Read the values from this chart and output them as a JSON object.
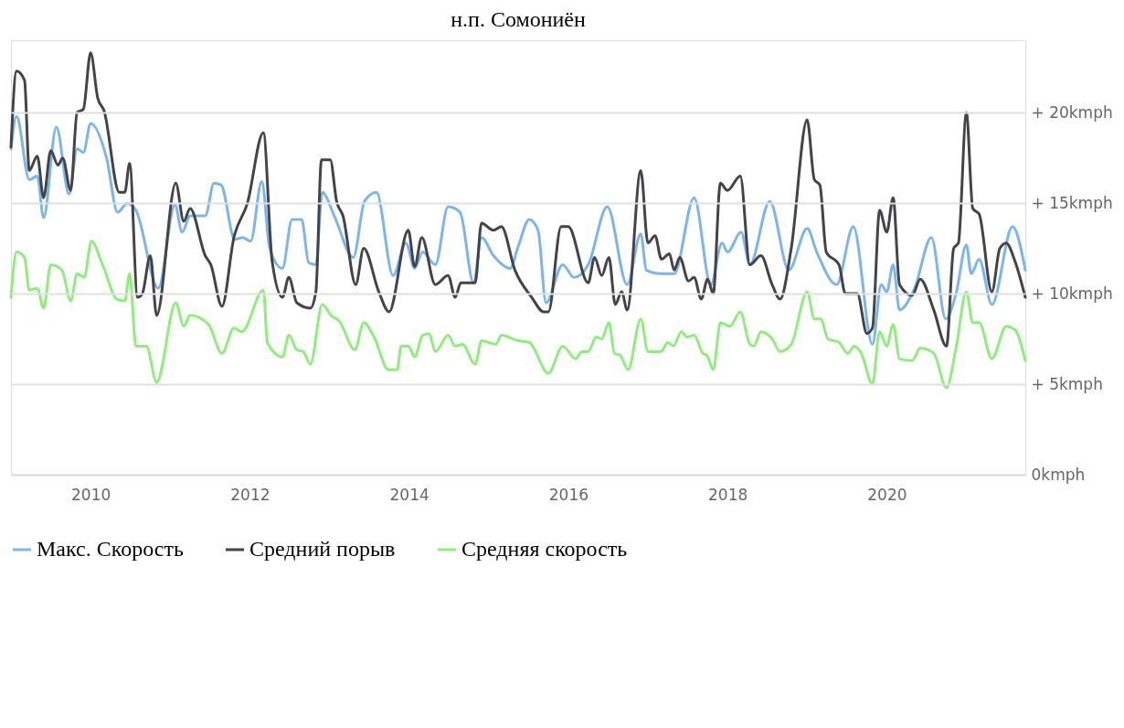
{
  "chart_data": {
    "type": "line",
    "title": "н.п. Сомониён",
    "xlim": [
      2009.0,
      2021.74
    ],
    "xticks": [
      2010,
      2012,
      2014,
      2016,
      2018,
      2020
    ],
    "ylim": [
      0,
      24
    ],
    "yticks": [
      {
        "value": 0,
        "label": "0kmph"
      },
      {
        "value": 5,
        "label": "+ 5kmph"
      },
      {
        "value": 10,
        "label": "+ 10kmph"
      },
      {
        "value": 15,
        "label": "+ 15kmph"
      },
      {
        "value": 20,
        "label": "+ 20kmph"
      }
    ],
    "grid": "y",
    "legend": "bottom",
    "marker": "none",
    "line_style": "solid",
    "series": [
      {
        "name": "Макс. Скорость",
        "color": "#7cb5ec",
        "x": [
          2009.0,
          2009.07,
          2009.23,
          2009.33,
          2009.41,
          2009.57,
          2009.73,
          2009.83,
          2009.91,
          2010.0,
          2010.2,
          2010.34,
          2010.46,
          2010.57,
          2010.85,
          2011.06,
          2011.15,
          2011.25,
          2011.44,
          2011.55,
          2011.64,
          2011.81,
          2011.91,
          2012.01,
          2012.15,
          2012.25,
          2012.41,
          2012.53,
          2012.65,
          2012.74,
          2012.83,
          2012.91,
          2013.06,
          2013.3,
          2013.44,
          2013.59,
          2013.8,
          2013.96,
          2014.07,
          2014.17,
          2014.33,
          2014.49,
          2014.64,
          2014.81,
          2014.91,
          2015.06,
          2015.27,
          2015.37,
          2015.51,
          2015.62,
          2015.72,
          2015.93,
          2016.07,
          2016.25,
          2016.49,
          2016.74,
          2016.91,
          2016.98,
          2017.16,
          2017.33,
          2017.58,
          2017.79,
          2017.93,
          2018.0,
          2018.17,
          2018.28,
          2018.53,
          2018.77,
          2019.0,
          2019.12,
          2019.37,
          2019.58,
          2019.82,
          2019.93,
          2020.0,
          2020.08,
          2020.16,
          2020.35,
          2020.56,
          2020.74,
          2020.87,
          2021.0,
          2021.06,
          2021.16,
          2021.32,
          2021.58,
          2021.74
        ],
        "values": [
          18.0,
          19.8,
          16.3,
          16.5,
          14.2,
          19.2,
          15.5,
          18.0,
          17.8,
          19.4,
          17.5,
          14.5,
          15.0,
          14.6,
          10.3,
          14.9,
          13.4,
          14.3,
          14.3,
          16.1,
          16.0,
          13.0,
          13.1,
          12.9,
          16.2,
          12.5,
          11.4,
          14.1,
          14.1,
          11.7,
          11.6,
          15.6,
          14.3,
          12.0,
          15.1,
          15.6,
          11.0,
          12.8,
          11.4,
          12.3,
          11.6,
          14.8,
          14.5,
          10.6,
          13.1,
          12.1,
          11.4,
          12.6,
          14.1,
          13.5,
          9.5,
          11.6,
          10.9,
          11.6,
          14.8,
          10.5,
          13.3,
          11.3,
          11.1,
          11.1,
          15.3,
          10.5,
          12.8,
          12.3,
          13.4,
          11.6,
          15.1,
          11.3,
          13.6,
          12.3,
          10.5,
          13.7,
          7.2,
          10.5,
          10.1,
          11.6,
          9.1,
          10.3,
          13.1,
          8.6,
          10.0,
          12.7,
          11.1,
          11.9,
          9.4,
          13.7,
          11.3
        ]
      },
      {
        "name": "Средний порыв",
        "color": "#434348",
        "x": [
          2009.0,
          2009.07,
          2009.17,
          2009.23,
          2009.33,
          2009.41,
          2009.5,
          2009.59,
          2009.65,
          2009.75,
          2009.83,
          2009.91,
          2010.0,
          2010.09,
          2010.17,
          2010.36,
          2010.43,
          2010.49,
          2010.59,
          2010.65,
          2010.75,
          2010.83,
          2011.07,
          2011.17,
          2011.25,
          2011.44,
          2011.51,
          2011.65,
          2011.8,
          2011.97,
          2012.17,
          2012.28,
          2012.41,
          2012.49,
          2012.59,
          2012.76,
          2012.83,
          2012.9,
          2013.01,
          2013.09,
          2013.17,
          2013.33,
          2013.43,
          2013.62,
          2013.75,
          2013.99,
          2014.07,
          2014.16,
          2014.33,
          2014.49,
          2014.58,
          2014.65,
          2014.83,
          2014.91,
          2015.06,
          2015.16,
          2015.33,
          2015.54,
          2015.69,
          2015.75,
          2015.91,
          2016.0,
          2016.25,
          2016.33,
          2016.42,
          2016.51,
          2016.59,
          2016.67,
          2016.74,
          2016.91,
          2017.0,
          2017.09,
          2017.17,
          2017.27,
          2017.33,
          2017.4,
          2017.51,
          2017.58,
          2017.67,
          2017.75,
          2017.82,
          2017.91,
          2018.0,
          2018.16,
          2018.28,
          2018.42,
          2018.56,
          2018.66,
          2018.8,
          2019.0,
          2019.09,
          2019.16,
          2019.24,
          2019.4,
          2019.48,
          2019.63,
          2019.75,
          2019.82,
          2019.91,
          2020.0,
          2020.08,
          2020.16,
          2020.32,
          2020.42,
          2020.59,
          2020.75,
          2020.84,
          2020.9,
          2021.0,
          2021.08,
          2021.16,
          2021.32,
          2021.42,
          2021.5,
          2021.61,
          2021.74
        ],
        "values": [
          18.1,
          22.3,
          21.8,
          16.8,
          17.6,
          15.3,
          17.9,
          17.1,
          17.5,
          15.7,
          20.0,
          20.2,
          23.3,
          20.8,
          20.1,
          15.6,
          15.6,
          17.2,
          9.8,
          10.0,
          12.1,
          8.8,
          16.1,
          14.0,
          14.7,
          12.1,
          11.6,
          9.3,
          13.1,
          15.0,
          18.9,
          11.8,
          9.8,
          10.9,
          9.5,
          9.2,
          10.1,
          17.4,
          17.4,
          15.1,
          14.3,
          10.5,
          12.5,
          10.1,
          9.0,
          13.5,
          11.5,
          13.1,
          10.5,
          11.0,
          9.8,
          10.6,
          10.6,
          13.9,
          13.5,
          13.7,
          11.3,
          9.8,
          9.0,
          9.0,
          13.7,
          13.7,
          10.6,
          12.0,
          11.0,
          12.0,
          9.4,
          10.1,
          9.1,
          16.8,
          12.8,
          13.2,
          11.9,
          12.2,
          11.3,
          12.0,
          10.7,
          10.9,
          9.7,
          10.8,
          10.0,
          16.1,
          15.7,
          16.5,
          11.6,
          12.1,
          10.5,
          9.7,
          12.5,
          19.6,
          16.3,
          16.0,
          12.3,
          11.6,
          10.0,
          10.0,
          7.8,
          8.1,
          14.6,
          13.4,
          15.3,
          10.5,
          9.9,
          10.8,
          9.1,
          7.1,
          12.5,
          12.8,
          20.0,
          14.7,
          14.4,
          10.1,
          12.5,
          12.8,
          11.8,
          9.8
        ]
      },
      {
        "name": "Средняя скорость",
        "color": "#90ed7d",
        "x": [
          2009.0,
          2009.07,
          2009.17,
          2009.23,
          2009.33,
          2009.41,
          2009.5,
          2009.64,
          2009.75,
          2009.83,
          2009.92,
          2010.01,
          2010.15,
          2010.33,
          2010.43,
          2010.49,
          2010.57,
          2010.7,
          2010.83,
          2011.07,
          2011.17,
          2011.25,
          2011.48,
          2011.65,
          2011.8,
          2011.9,
          2012.17,
          2012.22,
          2012.41,
          2012.49,
          2012.59,
          2012.67,
          2012.76,
          2012.91,
          2013.02,
          2013.12,
          2013.32,
          2013.43,
          2013.56,
          2013.74,
          2013.85,
          2013.9,
          2013.99,
          2014.07,
          2014.17,
          2014.25,
          2014.33,
          2014.49,
          2014.58,
          2014.67,
          2014.83,
          2014.91,
          2015.09,
          2015.16,
          2015.37,
          2015.51,
          2015.75,
          2015.93,
          2016.09,
          2016.17,
          2016.25,
          2016.35,
          2016.42,
          2016.51,
          2016.58,
          2016.65,
          2016.75,
          2016.91,
          2017.0,
          2017.16,
          2017.25,
          2017.32,
          2017.42,
          2017.49,
          2017.58,
          2017.69,
          2017.74,
          2017.82,
          2017.91,
          2018.03,
          2018.16,
          2018.28,
          2018.33,
          2018.42,
          2018.56,
          2018.66,
          2018.8,
          2019.0,
          2019.09,
          2019.17,
          2019.26,
          2019.4,
          2019.51,
          2019.59,
          2019.68,
          2019.82,
          2019.91,
          2020.0,
          2020.08,
          2020.16,
          2020.32,
          2020.42,
          2020.59,
          2020.75,
          2020.87,
          2021.0,
          2021.08,
          2021.16,
          2021.32,
          2021.5,
          2021.61,
          2021.74
        ],
        "values": [
          9.8,
          12.3,
          12.0,
          10.2,
          10.3,
          9.2,
          11.6,
          11.3,
          9.6,
          11.1,
          10.9,
          12.9,
          11.6,
          9.7,
          9.6,
          11.1,
          7.1,
          7.1,
          5.1,
          9.5,
          8.2,
          8.8,
          8.3,
          6.7,
          8.1,
          7.9,
          10.2,
          7.3,
          6.5,
          7.7,
          6.9,
          6.8,
          6.1,
          9.4,
          8.8,
          8.5,
          6.9,
          8.4,
          7.6,
          5.8,
          5.8,
          7.1,
          7.1,
          6.5,
          7.7,
          7.8,
          6.8,
          7.7,
          7.1,
          7.2,
          6.1,
          7.4,
          7.2,
          7.7,
          7.4,
          7.3,
          5.6,
          7.1,
          6.4,
          6.8,
          6.8,
          7.6,
          7.5,
          8.4,
          6.7,
          6.6,
          5.8,
          8.6,
          6.8,
          6.8,
          7.3,
          7.1,
          7.9,
          7.6,
          7.7,
          6.7,
          6.6,
          5.8,
          8.4,
          8.2,
          9.0,
          7.2,
          7.1,
          7.9,
          7.5,
          6.8,
          7.2,
          10.1,
          8.6,
          8.6,
          7.5,
          7.3,
          6.7,
          7.1,
          6.7,
          5.0,
          7.9,
          7.1,
          8.3,
          6.4,
          6.3,
          7.0,
          6.7,
          4.8,
          7.0,
          10.1,
          8.4,
          8.4,
          6.4,
          8.2,
          8.0,
          6.3
        ]
      }
    ]
  }
}
